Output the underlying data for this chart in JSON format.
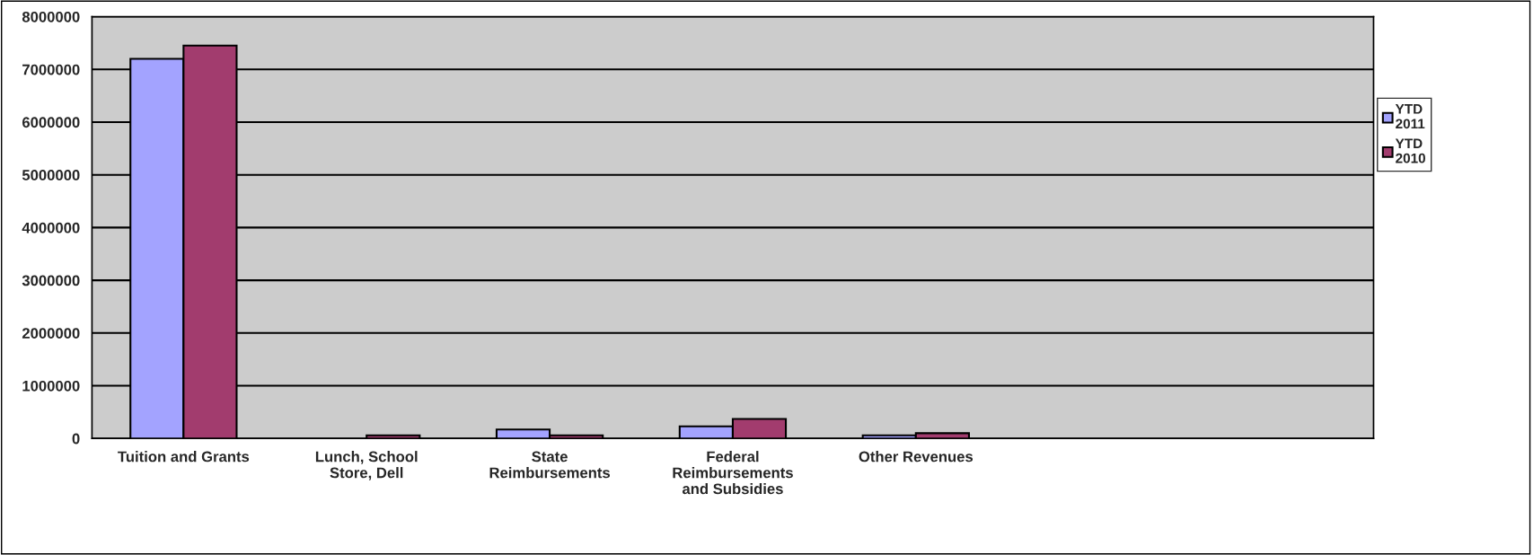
{
  "chart_data": {
    "type": "bar",
    "categories": [
      "Tuition and Grants",
      "Lunch, School\nStore, Dell",
      "State\nReimbursements",
      "Federal\nReimbursements\nand Subsidies",
      "Other Revenues",
      null,
      null
    ],
    "series": [
      {
        "name": "YTD\n2011",
        "color": "#a3a3ff",
        "values": [
          7200000,
          null,
          170000,
          230000,
          60000,
          null,
          null
        ]
      },
      {
        "name": "YTD\n2010",
        "color": "#a23c6e",
        "values": [
          7450000,
          60000,
          60000,
          370000,
          100000,
          null,
          null
        ]
      }
    ],
    "ylim": [
      0,
      8000000
    ],
    "yticks": [
      0,
      1000000,
      2000000,
      3000000,
      4000000,
      5000000,
      6000000,
      7000000,
      8000000
    ],
    "grid": "y",
    "legend": "right"
  }
}
